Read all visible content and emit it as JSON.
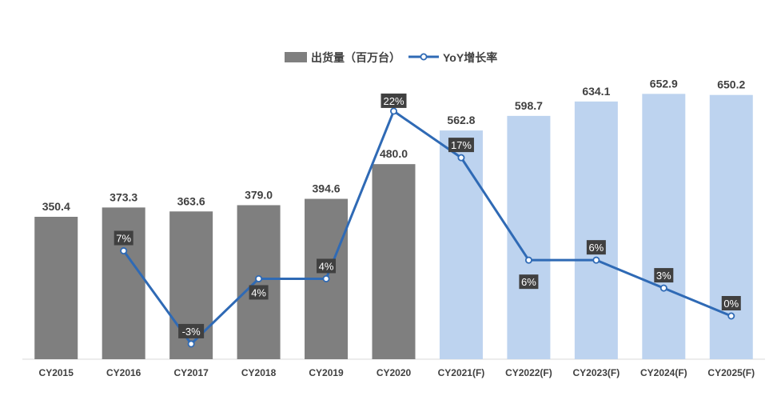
{
  "chart_data": {
    "type": "bar",
    "categories": [
      "CY2015",
      "CY2016",
      "CY2017",
      "CY2018",
      "CY2019",
      "CY2020",
      "CY2021(F)",
      "CY2022(F)",
      "CY2023(F)",
      "CY2024(F)",
      "CY2025(F)"
    ],
    "series": [
      {
        "name": "出货量（百万台）",
        "type": "bar",
        "values": [
          350.4,
          373.3,
          363.6,
          379.0,
          394.6,
          480.0,
          562.8,
          598.7,
          634.1,
          652.9,
          650.2
        ],
        "labels": [
          "350.4",
          "373.3",
          "363.6",
          "379.0",
          "394.6",
          "480.0",
          "562.8",
          "598.7",
          "634.1",
          "652.9",
          "650.2"
        ],
        "forecast": [
          false,
          false,
          false,
          false,
          false,
          false,
          true,
          true,
          true,
          true,
          true
        ]
      },
      {
        "name": "YoY增长率",
        "type": "line",
        "values": [
          null,
          7,
          -3,
          4,
          4,
          22,
          17,
          6,
          6,
          3,
          0
        ],
        "labels": [
          null,
          "7%",
          "-3%",
          "4%",
          "4%",
          "22%",
          "17%",
          "6%",
          "6%",
          "3%",
          "0%"
        ]
      }
    ],
    "ylim": [
      0,
      700
    ],
    "y2lim": [
      -5,
      25
    ],
    "grid": false,
    "legend": "top-center",
    "colors": {
      "bar_actual": "#7f7f7f",
      "bar_forecast": "#bdd3ef",
      "line": "#2f6ab5",
      "label_box": "#404040",
      "text": "#404040"
    }
  }
}
